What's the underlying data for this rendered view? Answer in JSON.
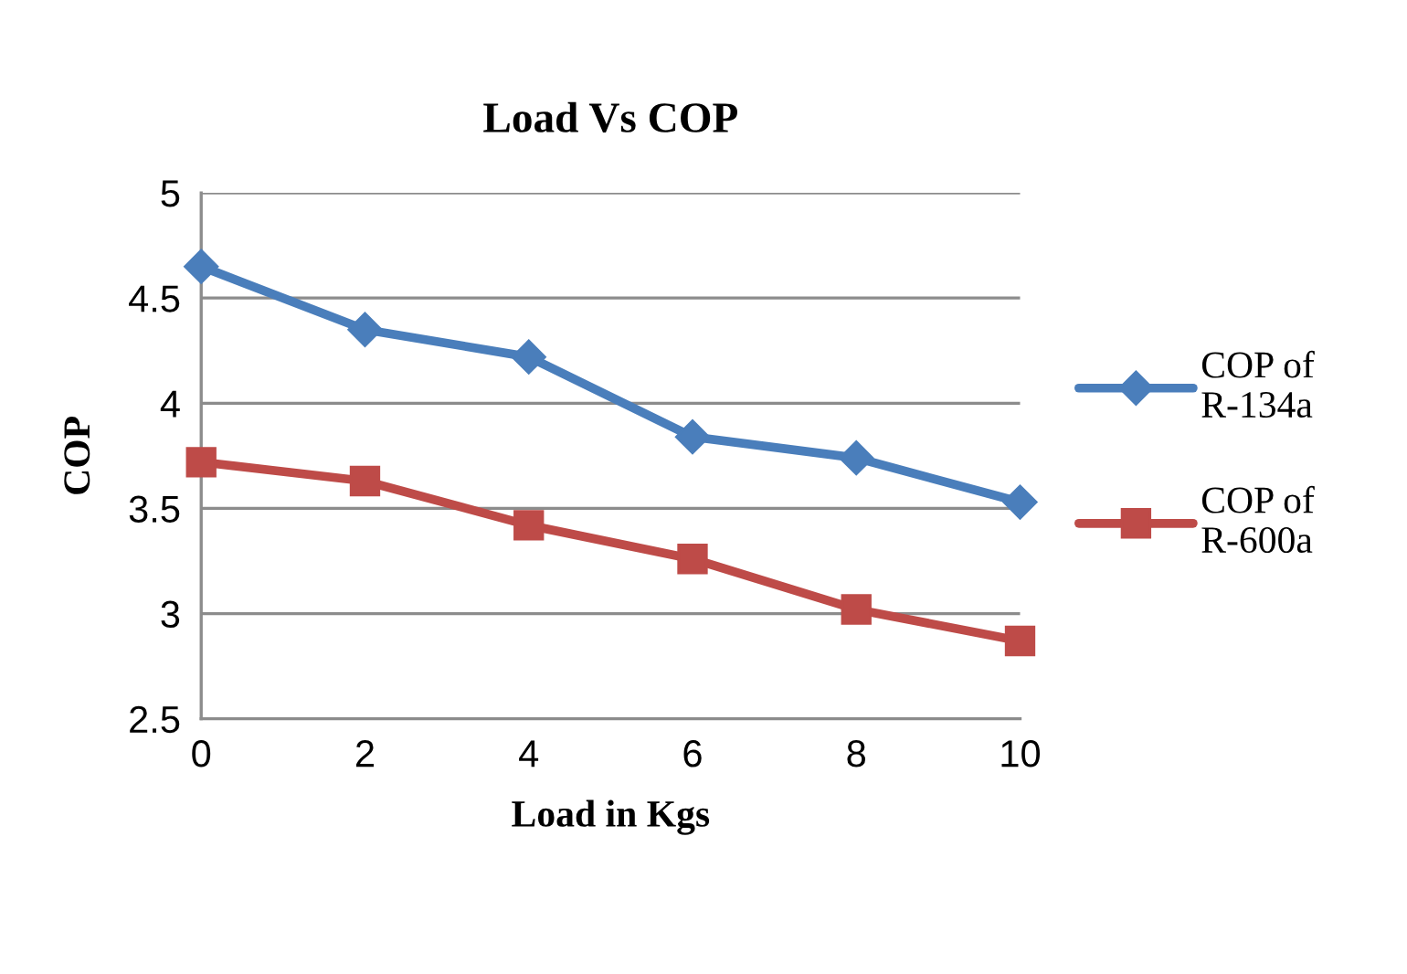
{
  "chart_data": {
    "type": "line",
    "title": "Load Vs COP",
    "xlabel": "Load in Kgs",
    "ylabel": "COP",
    "x": [
      0,
      2,
      4,
      6,
      8,
      10
    ],
    "series": [
      {
        "name": "COP of\nR-134a",
        "color": "#4a7ebb",
        "marker": "diamond",
        "values": [
          4.65,
          4.35,
          4.22,
          3.84,
          3.74,
          3.53
        ]
      },
      {
        "name": "COP of\nR-600a",
        "color": "#be4b48",
        "marker": "square",
        "values": [
          3.72,
          3.63,
          3.42,
          3.26,
          3.02,
          2.87
        ]
      }
    ],
    "xlim": [
      0,
      10
    ],
    "xticks": [
      0,
      2,
      4,
      6,
      8,
      10
    ],
    "ylim": [
      2.5,
      5
    ],
    "yticks": [
      2.5,
      3,
      3.5,
      4,
      4.5,
      5
    ],
    "grid": "y",
    "legend": "right",
    "line_style": "solid"
  }
}
